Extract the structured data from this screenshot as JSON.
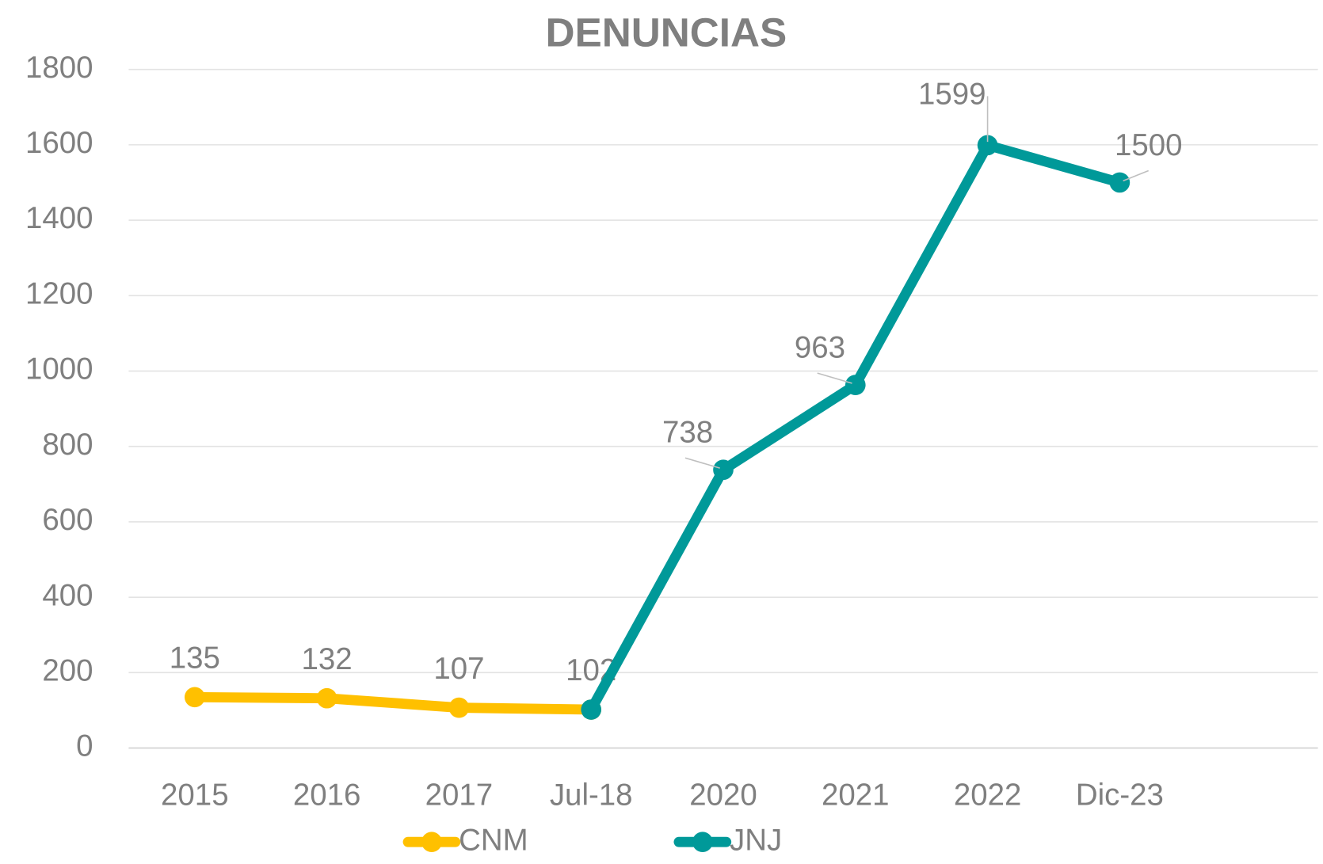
{
  "chart_data": {
    "type": "line",
    "title": "DENUNCIAS",
    "categories": [
      "2015",
      "2016",
      "2017",
      "Jul-18",
      "2020",
      "2021",
      "2022",
      "Dic-23",
      null
    ],
    "series": [
      {
        "name": "CNM",
        "color": "#ffc000",
        "values": [
          135,
          132,
          107,
          102,
          null,
          null,
          null,
          null,
          null
        ]
      },
      {
        "name": "JNJ",
        "color": "#009999",
        "values": [
          null,
          null,
          null,
          102,
          738,
          963,
          1599,
          1500,
          null
        ]
      }
    ],
    "ylim": [
      0,
      1800
    ],
    "yticks": [
      0,
      200,
      400,
      600,
      800,
      1000,
      1200,
      1400,
      1600,
      1800
    ],
    "grid": true,
    "legend": "bottom"
  }
}
